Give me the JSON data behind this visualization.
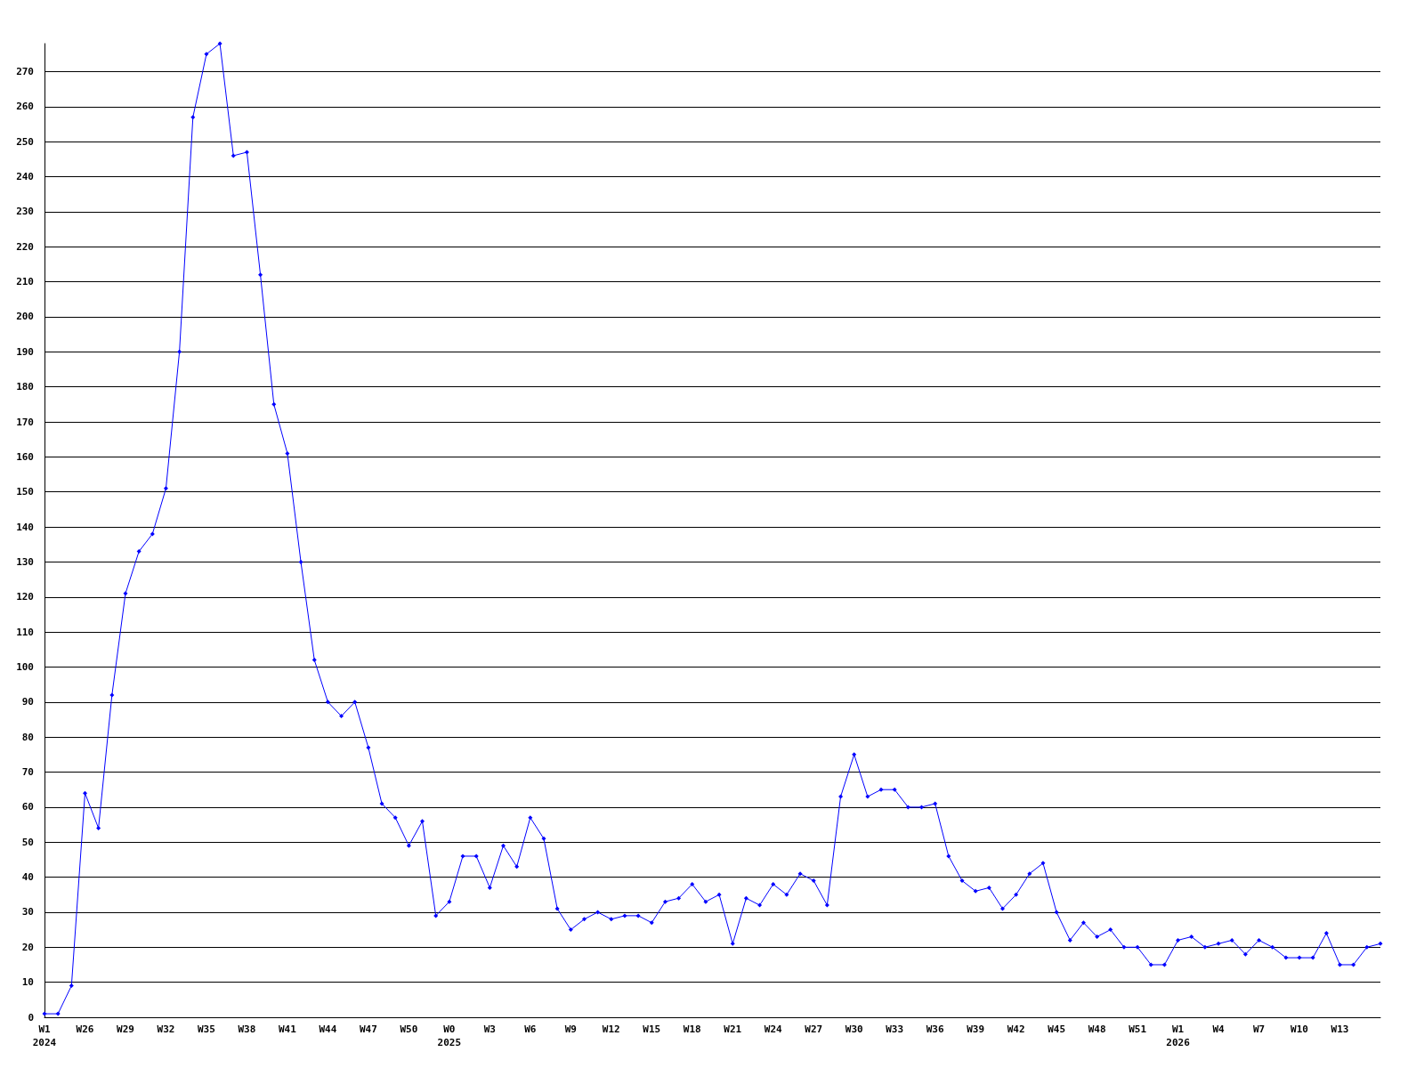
{
  "chart_data": {
    "type": "line",
    "categories": [
      "W1\n2024",
      null,
      null,
      "W26",
      null,
      null,
      "W29",
      null,
      null,
      "W32",
      null,
      null,
      "W35",
      null,
      null,
      "W38",
      null,
      null,
      "W41",
      null,
      null,
      "W44",
      null,
      null,
      "W47",
      null,
      null,
      "W50",
      null,
      null,
      "W0\n2025",
      null,
      null,
      "W3",
      null,
      null,
      "W6",
      null,
      null,
      "W9",
      null,
      null,
      "W12",
      null,
      null,
      "W15",
      null,
      null,
      "W18",
      null,
      null,
      "W21",
      null,
      null,
      "W24",
      null,
      null,
      "W27",
      null,
      null,
      "W30",
      null,
      null,
      "W33",
      null,
      null,
      "W36",
      null,
      null,
      "W39",
      null,
      null,
      "W42",
      null,
      null,
      "W45",
      null,
      null,
      "W48",
      null,
      null,
      "W51",
      null,
      null,
      "W1\n2026",
      null,
      null,
      "W4",
      null,
      null,
      "W7",
      null,
      null,
      "W10",
      null,
      null,
      "W13",
      null,
      null,
      null
    ],
    "series": [
      {
        "color": "#0000ff",
        "values": [
          1,
          1,
          9,
          64,
          54,
          92,
          121,
          133,
          138,
          151,
          190,
          257,
          275,
          278,
          246,
          247,
          212,
          175,
          161,
          130,
          102,
          90,
          86,
          90,
          77,
          61,
          57,
          49,
          56,
          29,
          33,
          46,
          46,
          37,
          49,
          43,
          57,
          51,
          31,
          25,
          28,
          30,
          28,
          29,
          29,
          27,
          33,
          34,
          38,
          33,
          35,
          21,
          34,
          32,
          38,
          35,
          41,
          39,
          32,
          63,
          75,
          63,
          65,
          65,
          60,
          60,
          61,
          46,
          39,
          36,
          37,
          31,
          35,
          41,
          44,
          30,
          22,
          27,
          23,
          25,
          20,
          20,
          15,
          15,
          22,
          23,
          20,
          21,
          22,
          18,
          22,
          20,
          17,
          17,
          17,
          24,
          15,
          15,
          20,
          21
        ]
      }
    ],
    "ylim": [
      0,
      278
    ],
    "yticks": [
      0,
      10,
      20,
      30,
      40,
      50,
      60,
      70,
      80,
      90,
      100,
      110,
      120,
      130,
      140,
      150,
      160,
      170,
      180,
      190,
      200,
      210,
      220,
      230,
      240,
      250,
      260,
      270
    ],
    "grid": "y",
    "marker": "diamond",
    "line_style": "solid"
  }
}
